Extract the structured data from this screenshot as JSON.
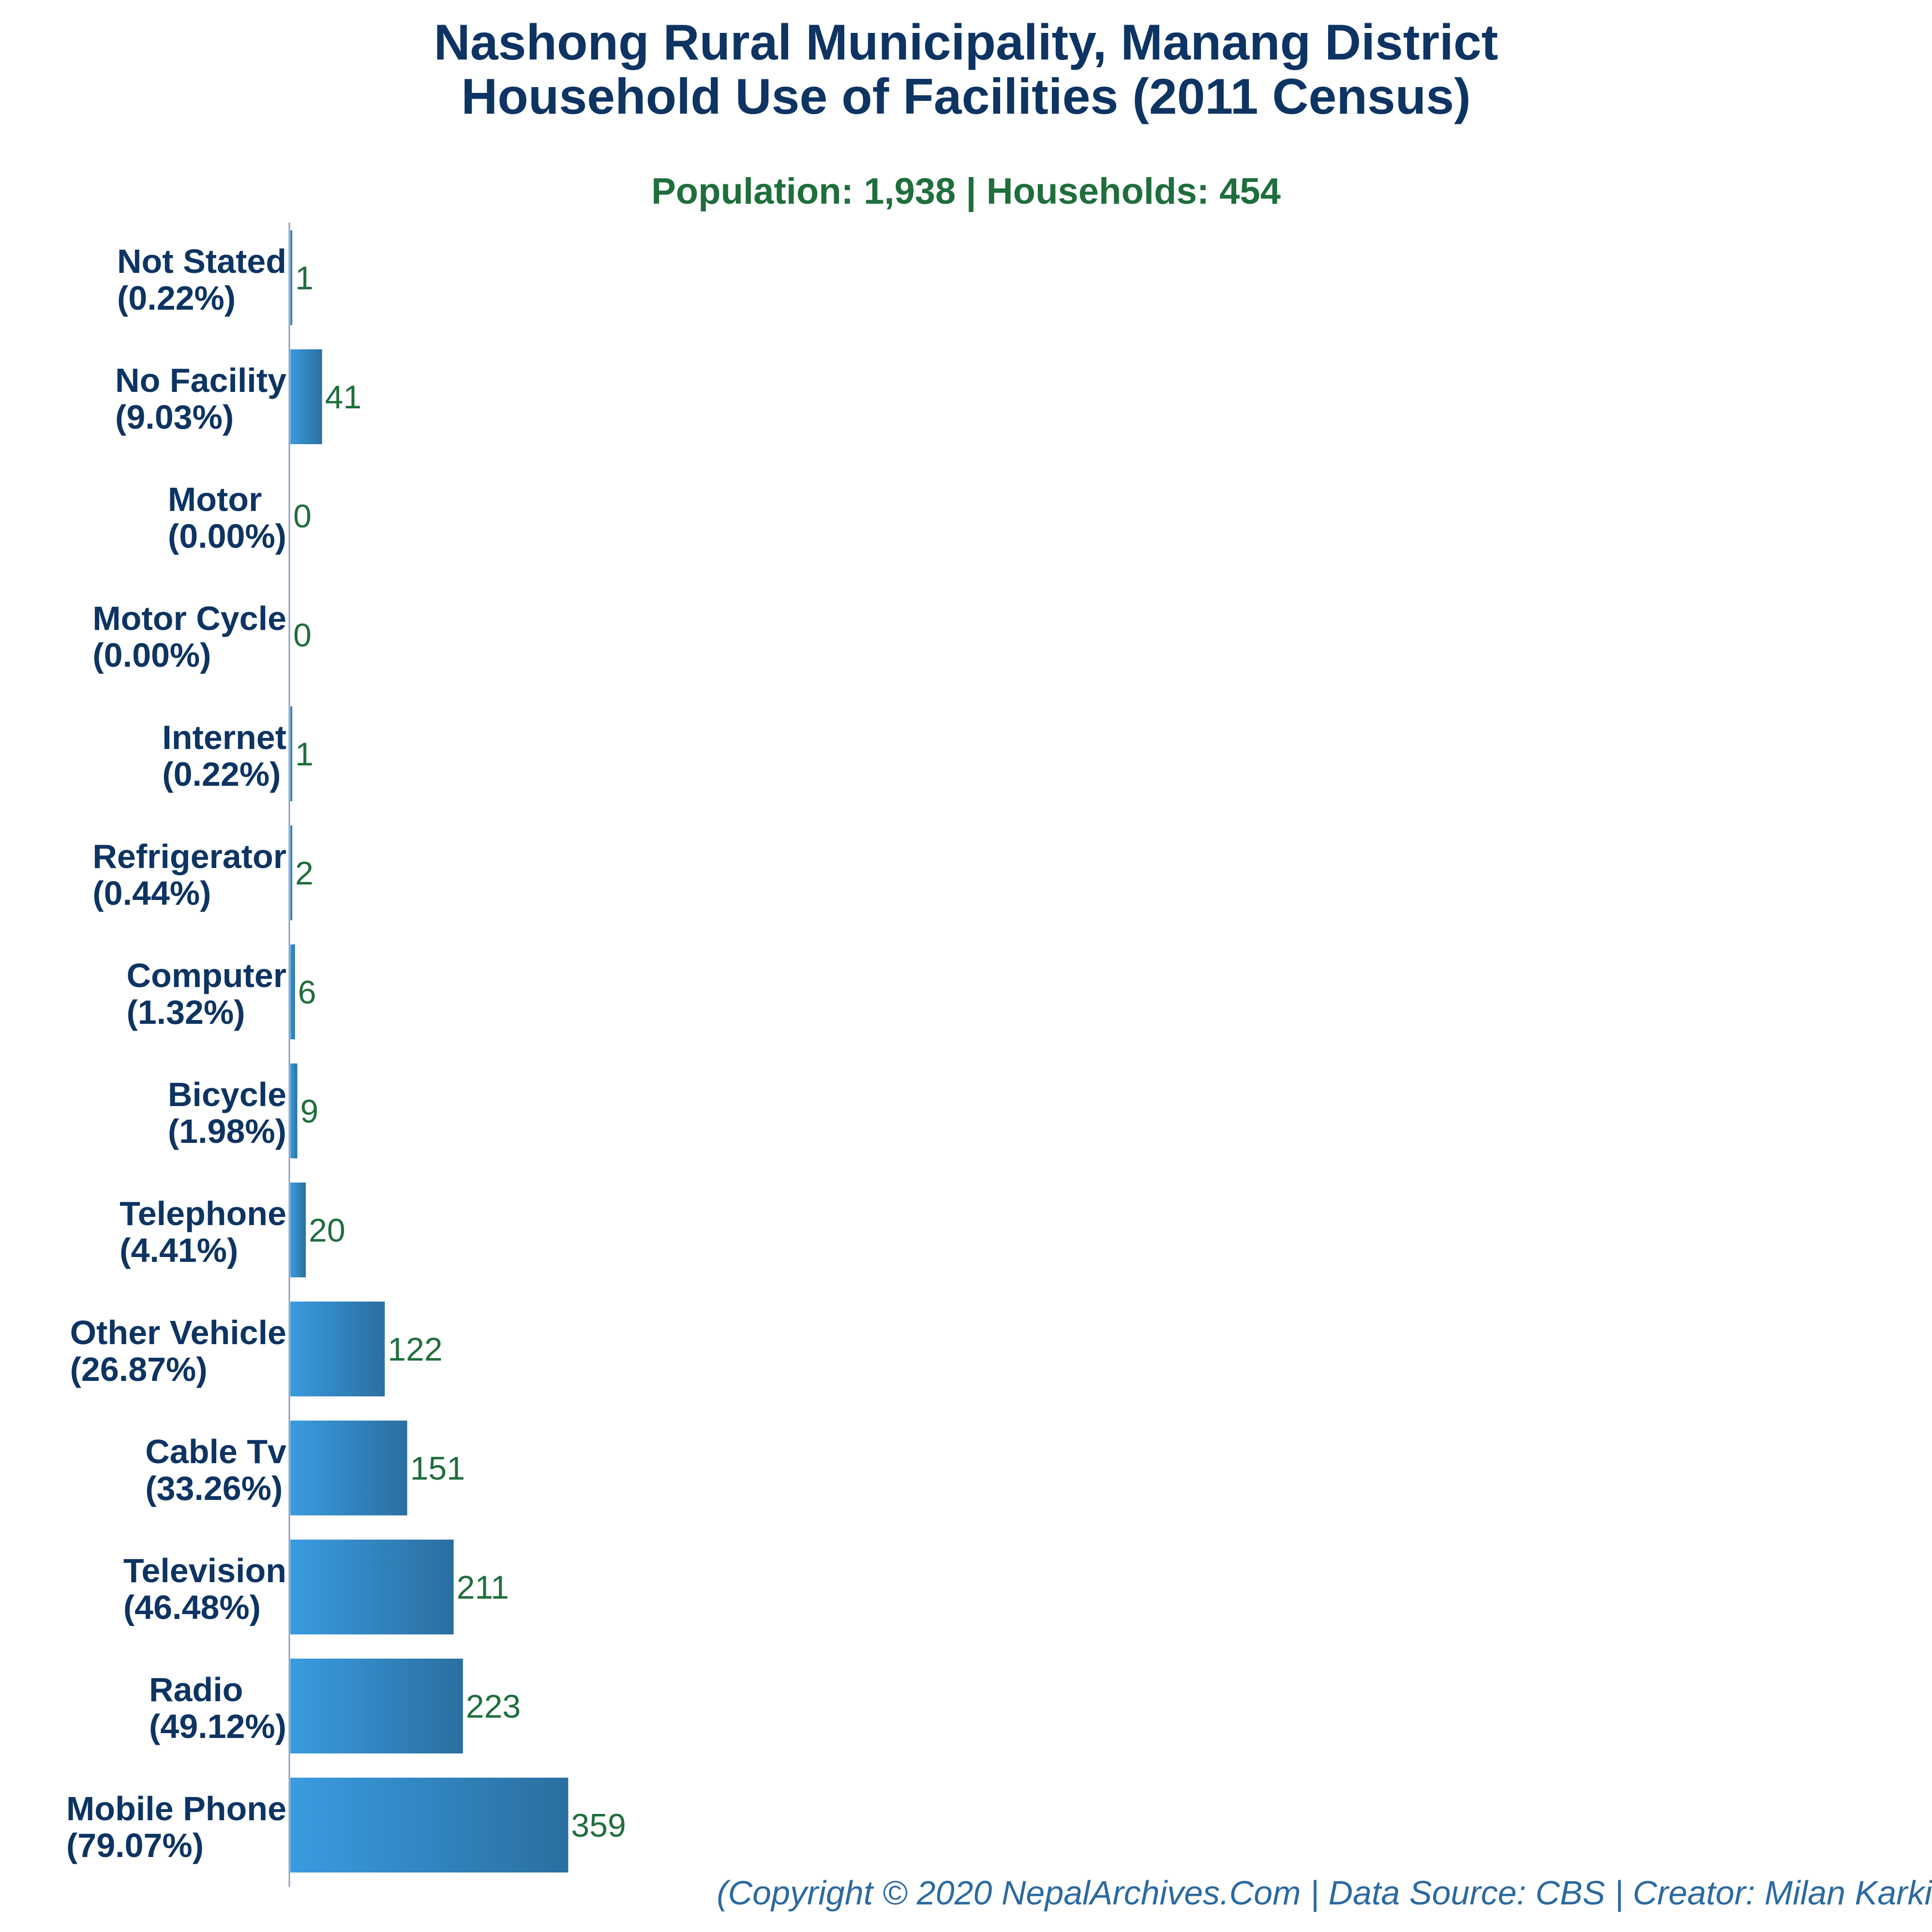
{
  "header": {
    "title_line1": "Nashong Rural Municipality, Manang District",
    "title_line2": "Household Use of Facilities (2011 Census)",
    "subtitle": "Population: 1,938 | Households: 454"
  },
  "footer": {
    "credit": "(Copyright © 2020 NepalArchives.Com | Data Source: CBS | Creator: Milan Karki"
  },
  "colors": {
    "bar_start": "#3a9be0",
    "bar_end": "#2a6fa0",
    "category_text": "#0d3462",
    "value_text": "#1f6e3c",
    "axis": "#8aa0b8"
  },
  "chart_data": {
    "type": "bar",
    "orientation": "horizontal",
    "title": "Nashong Rural Municipality, Manang District Household Use of Facilities (2011 Census)",
    "categories": [
      "Not Stated",
      "No Facility",
      "Motor",
      "Motor Cycle",
      "Internet",
      "Refrigerator",
      "Computer",
      "Bicycle",
      "Telephone",
      "Other Vehicle",
      "Cable Tv",
      "Television",
      "Radio",
      "Mobile Phone"
    ],
    "percentages": [
      "(0.22%)",
      "(9.03%)",
      "(0.00%)",
      "(0.00%)",
      "(0.22%)",
      "(0.44%)",
      "(1.32%)",
      "(1.98%)",
      "(4.41%)",
      "(26.87%)",
      "(33.26%)",
      "(46.48%)",
      "(49.12%)",
      "(79.07%)"
    ],
    "values": [
      1,
      41,
      0,
      0,
      1,
      2,
      6,
      9,
      20,
      122,
      151,
      211,
      223,
      359
    ],
    "xlim": [
      0,
      1450
    ],
    "grid": false,
    "legend": "none"
  }
}
